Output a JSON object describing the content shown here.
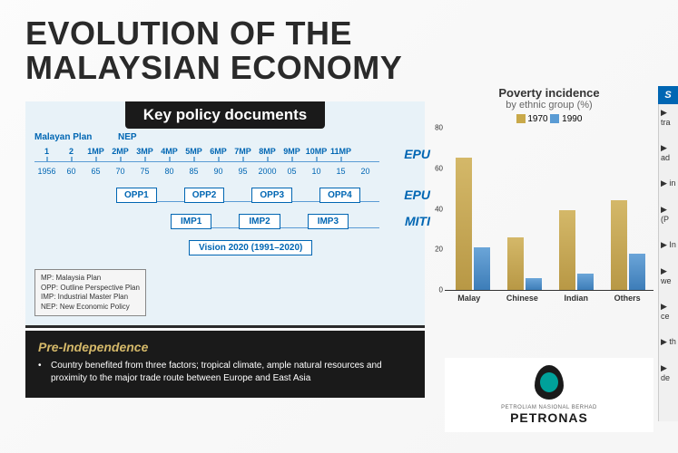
{
  "title": "EVOLUTION OF THE\nMALAYSIAN ECONOMY",
  "timeline": {
    "header": "Key policy documents",
    "labels": {
      "malayan": "Malayan Plan",
      "nep": "NEP"
    },
    "mp_items": [
      "1",
      "2",
      "1MP",
      "2MP",
      "3MP",
      "4MP",
      "5MP",
      "6MP",
      "7MP",
      "8MP",
      "9MP",
      "10MP",
      "11MP"
    ],
    "years": [
      "1956",
      "60",
      "65",
      "70",
      "75",
      "80",
      "85",
      "90",
      "95",
      "2000",
      "05",
      "10",
      "15",
      "20"
    ],
    "opp": [
      "OPP1",
      "OPP2",
      "OPP3",
      "OPP4"
    ],
    "imp": [
      "IMP1",
      "IMP2",
      "IMP3"
    ],
    "vision": "Vision 2020 (1991–2020)",
    "agencies": {
      "epu": "EPU",
      "miti": "MITI"
    },
    "legend": [
      "MP: Malaysia Plan",
      "OPP: Outline Perspective Plan",
      "IMP: Industrial Master Plan",
      "NEP: New Economic Policy"
    ],
    "colors": {
      "panel_bg": "#e8f2f8",
      "header_bg": "#1a1a1a",
      "text": "#0066b3",
      "line": "#5a9bd4"
    }
  },
  "chart": {
    "title": "Poverty incidence",
    "subtitle": "by ethnic group (%)",
    "series": [
      {
        "name": "1970",
        "color": "#c9a94a"
      },
      {
        "name": "1990",
        "color": "#5a9bd4"
      }
    ],
    "categories": [
      "Malay",
      "Chinese",
      "Indian",
      "Others"
    ],
    "data": {
      "1970": [
        65,
        26,
        39,
        44
      ],
      "1990": [
        21,
        6,
        8,
        18
      ]
    },
    "ymax": 80,
    "yticks": [
      0,
      20,
      40,
      60,
      80
    ],
    "label_fontsize": 9,
    "title_fontsize": 13
  },
  "pre_independence": {
    "title": "Pre-Independence",
    "text": "Country benefited from three factors; tropical climate, ample natural resources and proximity to the major trade route between Europe and East Asia",
    "title_color": "#d4b869",
    "bg_color": "#1a1a1a"
  },
  "petronas": {
    "tagline": "PETROLIAM NASIONAL BERHAD",
    "name": "PETRONAS",
    "accent_color": "#00a19a"
  },
  "right_edge": {
    "header": "S",
    "fragments": [
      "tra",
      "ad",
      "in",
      "(P",
      "In",
      "we",
      "ce",
      "th",
      "de"
    ]
  }
}
